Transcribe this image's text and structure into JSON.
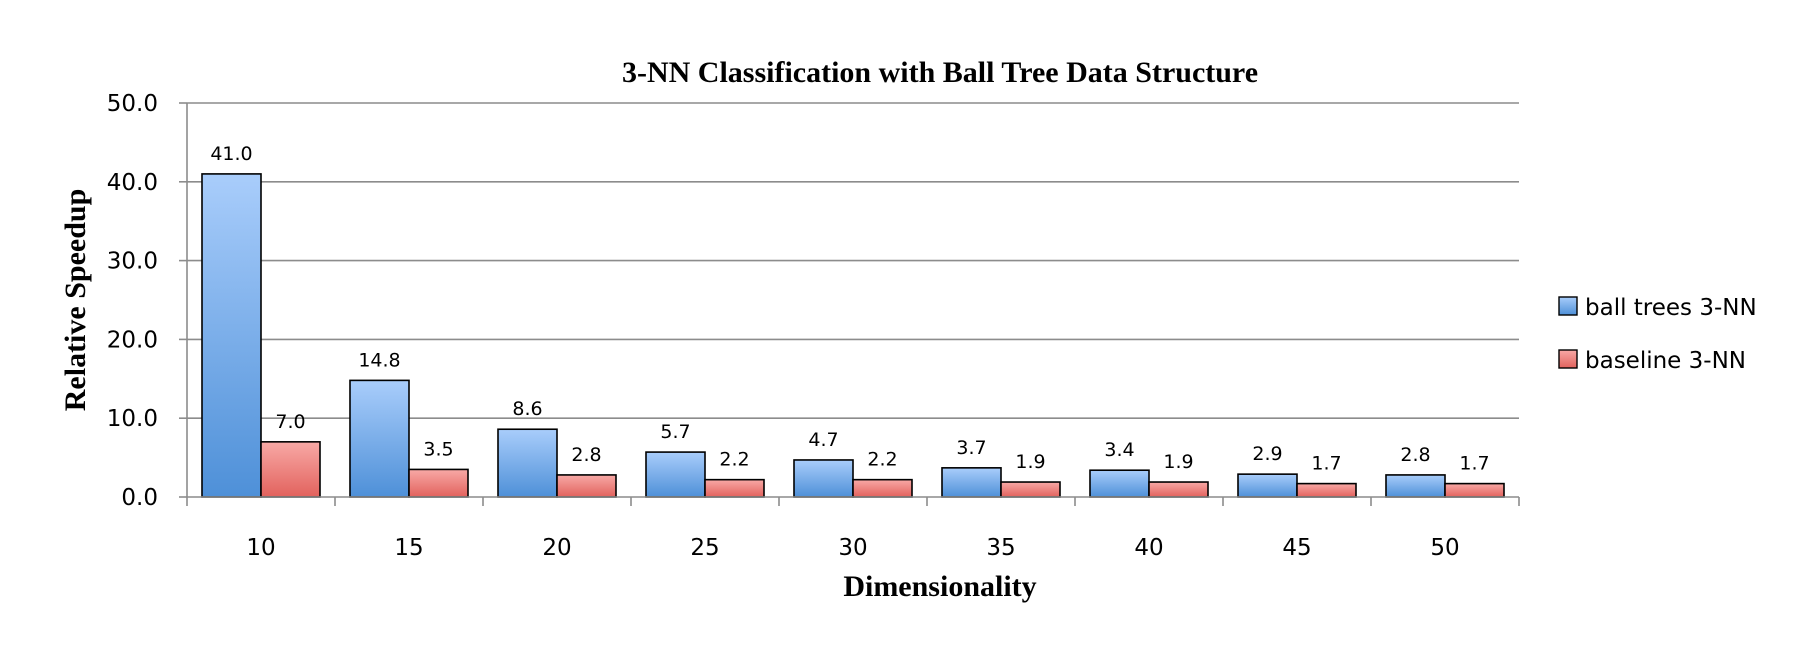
{
  "chart_data": {
    "type": "bar",
    "title": "3-NN Classification with Ball Tree Data Structure",
    "xlabel": "Dimensionality",
    "ylabel": "Relative Speedup",
    "categories": [
      "10",
      "15",
      "20",
      "25",
      "30",
      "35",
      "40",
      "45",
      "50"
    ],
    "series": [
      {
        "name": "ball trees 3-NN",
        "values": [
          41.0,
          14.8,
          8.6,
          5.7,
          4.7,
          3.7,
          3.4,
          2.9,
          2.8
        ],
        "labels": [
          "41.0",
          "14.8",
          "8.6",
          "5.7",
          "4.7",
          "3.7",
          "3.4",
          "2.9",
          "2.8"
        ],
        "color_top": "#a9cdfb",
        "color_bottom": "#4e90d8"
      },
      {
        "name": "baseline 3-NN",
        "values": [
          7.0,
          3.5,
          2.8,
          2.2,
          2.2,
          1.9,
          1.9,
          1.7,
          1.7
        ],
        "labels": [
          "7.0",
          "3.5",
          "2.8",
          "2.2",
          "2.2",
          "1.9",
          "1.9",
          "1.7",
          "1.7"
        ],
        "color_top": "#f8a9a6",
        "color_bottom": "#e2625d"
      }
    ],
    "ylim": [
      0,
      50
    ],
    "yticks": [
      0,
      10,
      20,
      30,
      40,
      50
    ],
    "ytick_labels": [
      "0.0",
      "10.0",
      "20.0",
      "30.0",
      "40.0",
      "50.0"
    ],
    "grid": true,
    "grid_color": "#8c8c8c",
    "legend_position": "right"
  }
}
